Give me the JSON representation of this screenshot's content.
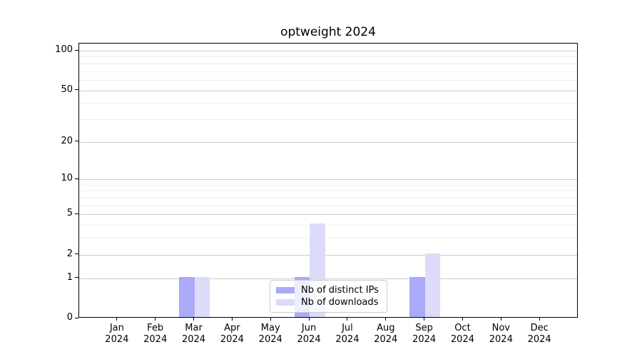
{
  "title": "optweight 2024",
  "colors": {
    "distinct_ips": "#aaaaf8",
    "downloads": "#dcdcfa",
    "grid_major": "#cccccc",
    "grid_minor": "#ededed",
    "axis": "#000000"
  },
  "legend": {
    "items": [
      {
        "label": "Nb of distinct IPs",
        "color_key": "distinct_ips"
      },
      {
        "label": "Nb of downloads",
        "color_key": "downloads"
      }
    ]
  },
  "chart_data": {
    "type": "bar",
    "title": "optweight 2024",
    "categories": [
      "Jan 2024",
      "Feb 2024",
      "Mar 2024",
      "Apr 2024",
      "May 2024",
      "Jun 2024",
      "Jul 2024",
      "Aug 2024",
      "Sep 2024",
      "Oct 2024",
      "Nov 2024",
      "Dec 2024"
    ],
    "x_tick_months": [
      "Jan",
      "Feb",
      "Mar",
      "Apr",
      "May",
      "Jun",
      "Jul",
      "Aug",
      "Sep",
      "Oct",
      "Nov",
      "Dec"
    ],
    "x_tick_year": "2024",
    "series": [
      {
        "name": "Nb of distinct IPs",
        "color_key": "distinct_ips",
        "values": [
          0,
          0,
          1,
          0,
          0,
          1,
          0,
          0,
          1,
          0,
          0,
          0
        ]
      },
      {
        "name": "Nb of downloads",
        "color_key": "downloads",
        "values": [
          0,
          0,
          1,
          0,
          0,
          4,
          0,
          0,
          2,
          0,
          0,
          0
        ]
      }
    ],
    "xlabel": "",
    "ylabel": "",
    "y_axis": {
      "scale": "log1p",
      "major_ticks": [
        0,
        1,
        2,
        5,
        10,
        20,
        50,
        100
      ],
      "minor_ticks": [
        3,
        4,
        6,
        7,
        8,
        9,
        30,
        40,
        60,
        70,
        80,
        90
      ],
      "range": [
        0,
        114
      ]
    },
    "grid": true,
    "legend_position": "lower center"
  }
}
